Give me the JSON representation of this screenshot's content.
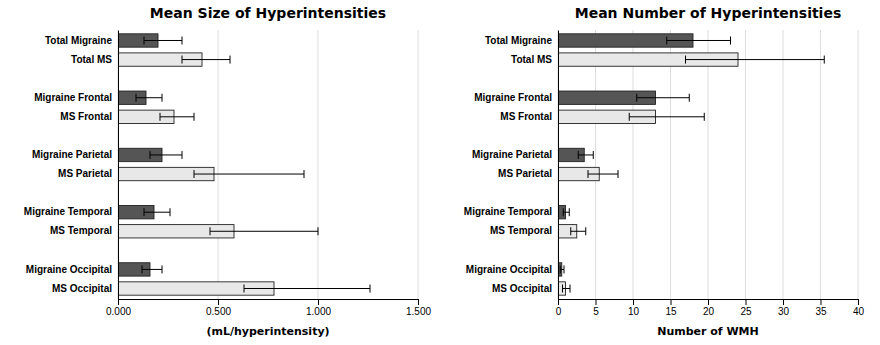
{
  "chart_data": [
    {
      "type": "bar",
      "orientation": "horizontal",
      "title": "Mean Size of Hyperintensities",
      "xlabel": "(mL/hyperintensity)",
      "categories": [
        "Total Migraine",
        "Total MS",
        "Migraine Frontal",
        "MS Frontal",
        "Migraine Parietal",
        "MS Parietal",
        "Migraine Temporal",
        "MS Temporal",
        "Migraine Occipital",
        "MS Occipital"
      ],
      "values": [
        0.2,
        0.42,
        0.14,
        0.28,
        0.22,
        0.48,
        0.18,
        0.58,
        0.16,
        0.78
      ],
      "xerr_low": [
        0.07,
        0.1,
        0.05,
        0.07,
        0.06,
        0.1,
        0.05,
        0.12,
        0.04,
        0.15
      ],
      "xerr_high": [
        0.12,
        0.14,
        0.08,
        0.1,
        0.1,
        0.45,
        0.08,
        0.42,
        0.06,
        0.48
      ],
      "colors": [
        "#555555",
        "#e8e8e8",
        "#555555",
        "#e8e8e8",
        "#555555",
        "#e8e8e8",
        "#555555",
        "#e8e8e8",
        "#555555",
        "#e8e8e8"
      ],
      "xlim": [
        0,
        1.5
      ],
      "xticks": [
        {
          "value": 0.0,
          "label": "0.000"
        },
        {
          "value": 0.5,
          "label": "0.500"
        },
        {
          "value": 1.0,
          "label": "1.000"
        },
        {
          "value": 1.5,
          "label": "1.500"
        }
      ],
      "grid": true
    },
    {
      "type": "bar",
      "orientation": "horizontal",
      "title": "Mean Number of Hyperintensities",
      "xlabel": "Number of WMH",
      "categories": [
        "Total Migraine",
        "Total MS",
        "Migraine Frontal",
        "MS Frontal",
        "Migraine Parietal",
        "MS Parietal",
        "Migraine Temporal",
        "MS Temporal",
        "Migraine Occipital",
        "MS Occipital"
      ],
      "values": [
        18.0,
        24.0,
        13.0,
        13.0,
        3.5,
        5.5,
        1.0,
        2.5,
        0.5,
        1.0
      ],
      "xerr_low": [
        3.5,
        7.0,
        2.5,
        3.5,
        0.8,
        1.5,
        0.3,
        0.8,
        0.2,
        0.4
      ],
      "xerr_high": [
        5.0,
        11.5,
        4.5,
        6.5,
        1.2,
        2.5,
        0.5,
        1.2,
        0.3,
        0.6
      ],
      "colors": [
        "#555555",
        "#e8e8e8",
        "#555555",
        "#e8e8e8",
        "#555555",
        "#e8e8e8",
        "#555555",
        "#e8e8e8",
        "#555555",
        "#e8e8e8"
      ],
      "xlim": [
        0,
        40
      ],
      "xticks": [
        0,
        5,
        10,
        15,
        20,
        25,
        30,
        35,
        40
      ],
      "grid": true
    }
  ]
}
